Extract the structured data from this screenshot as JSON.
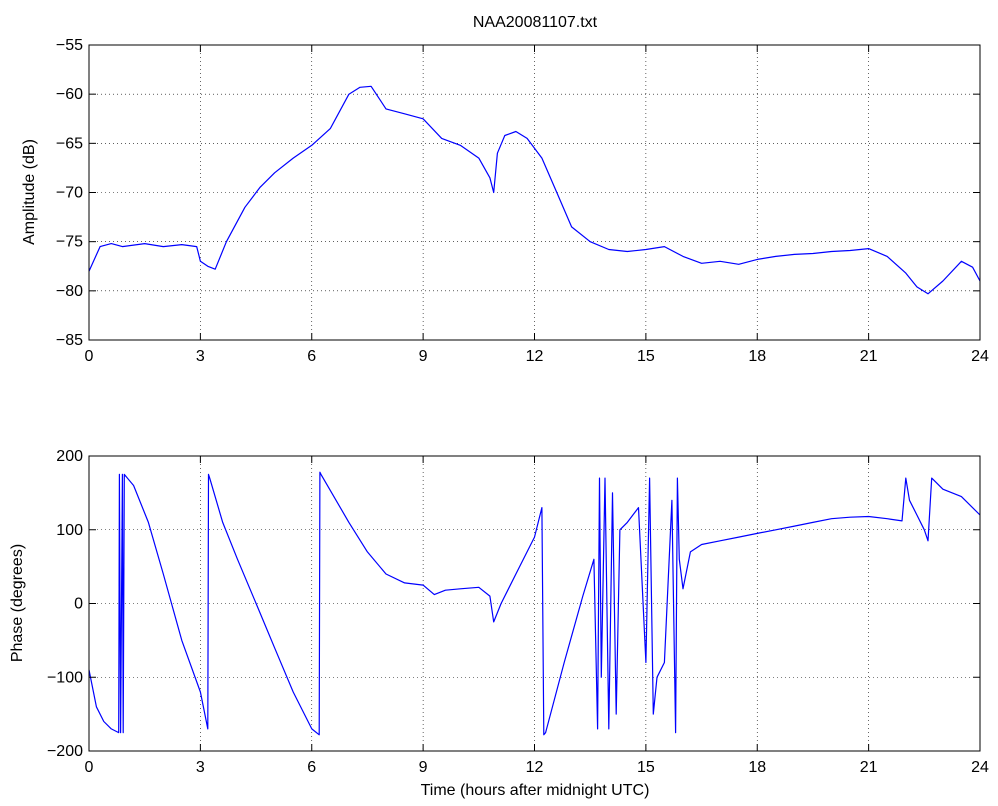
{
  "chart_data": [
    {
      "type": "line",
      "title": "NAA20081107.txt",
      "xlabel": "",
      "ylabel": "Amplitude (dB)",
      "xlim": [
        0,
        24
      ],
      "ylim": [
        -85,
        -55
      ],
      "xticks": [
        0,
        3,
        6,
        9,
        12,
        15,
        18,
        21,
        24
      ],
      "yticks": [
        -85,
        -80,
        -75,
        -70,
        -65,
        -60,
        -55
      ],
      "grid": true,
      "color": "#0000ff",
      "series": [
        {
          "x": [
            0,
            0.3,
            0.6,
            0.9,
            1.5,
            2.0,
            2.5,
            2.9,
            3.0,
            3.2,
            3.4,
            3.7,
            4.2,
            4.6,
            5.0,
            5.5,
            6.0,
            6.5,
            7.0,
            7.3,
            7.6,
            8.0,
            8.5,
            9.0,
            9.5,
            10.0,
            10.5,
            10.8,
            10.9,
            11.0,
            11.2,
            11.5,
            11.8,
            12.2,
            12.6,
            13.0,
            13.5,
            14.0,
            14.5,
            15.0,
            15.5,
            16.0,
            16.5,
            17.0,
            17.5,
            18.0,
            18.5,
            19.0,
            19.5,
            20.0,
            20.5,
            21.0,
            21.5,
            22.0,
            22.3,
            22.6,
            23.0,
            23.5,
            23.8,
            24.0
          ],
          "y": [
            -78,
            -75.5,
            -75.2,
            -75.5,
            -75.2,
            -75.5,
            -75.3,
            -75.5,
            -77,
            -77.5,
            -77.8,
            -75,
            -71.5,
            -69.5,
            -68,
            -66.5,
            -65.2,
            -63.5,
            -60,
            -59.3,
            -59.2,
            -61.5,
            -62,
            -62.5,
            -64.5,
            -65.2,
            -66.5,
            -68.5,
            -70,
            -66,
            -64.2,
            -63.8,
            -64.5,
            -66.5,
            -70,
            -73.5,
            -75,
            -75.8,
            -76,
            -75.8,
            -75.5,
            -76.5,
            -77.2,
            -77,
            -77.3,
            -76.8,
            -76.5,
            -76.3,
            -76.2,
            -76,
            -75.9,
            -75.7,
            -76.5,
            -78.2,
            -79.6,
            -80.3,
            -79,
            -77,
            -77.6,
            -79
          ]
        }
      ]
    },
    {
      "type": "line",
      "title": "",
      "xlabel": "Time (hours after midnight UTC)",
      "ylabel": "Phase (degrees)",
      "xlim": [
        0,
        24
      ],
      "ylim": [
        -200,
        200
      ],
      "xticks": [
        0,
        3,
        6,
        9,
        12,
        15,
        18,
        21,
        24
      ],
      "yticks": [
        -200,
        -100,
        0,
        100,
        200
      ],
      "grid": true,
      "color": "#0000ff",
      "series": [
        {
          "x": [
            0,
            0.2,
            0.4,
            0.6,
            0.8,
            0.82,
            0.85,
            0.9,
            0.92,
            0.95,
            1.2,
            1.6,
            2.0,
            2.5,
            3.0,
            3.2,
            3.22,
            3.25,
            3.6,
            4.0,
            4.5,
            5.0,
            5.5,
            6.0,
            6.2,
            6.22,
            6.25,
            7.0,
            7.5,
            8.0,
            8.5,
            9.0,
            9.3,
            9.6,
            10.0,
            10.5,
            10.8,
            10.9,
            11.1,
            11.5,
            12.0,
            12.2,
            12.25,
            12.3,
            12.8,
            13.3,
            13.6,
            13.7,
            13.75,
            13.8,
            13.9,
            14.0,
            14.1,
            14.2,
            14.3,
            14.5,
            14.8,
            15.0,
            15.1,
            15.2,
            15.3,
            15.5,
            15.7,
            15.8,
            15.85,
            15.9,
            16.0,
            16.2,
            16.5,
            17.0,
            17.5,
            18.0,
            18.5,
            19.0,
            19.5,
            20.0,
            20.5,
            21.0,
            21.5,
            21.9,
            22.0,
            22.1,
            22.3,
            22.5,
            22.6,
            22.7,
            22.8,
            23.0,
            23.5,
            24.0
          ],
          "y": [
            -90,
            -140,
            -160,
            -170,
            -175,
            175,
            -175,
            175,
            -175,
            175,
            160,
            110,
            40,
            -50,
            -120,
            -170,
            175,
            170,
            110,
            60,
            0,
            -60,
            -120,
            -170,
            -178,
            178,
            175,
            110,
            70,
            40,
            28,
            25,
            12,
            18,
            20,
            22,
            10,
            -25,
            0,
            40,
            90,
            130,
            -178,
            -175,
            -80,
            10,
            60,
            -170,
            170,
            -100,
            170,
            -170,
            150,
            -150,
            100,
            110,
            130,
            -80,
            170,
            -150,
            -100,
            -80,
            140,
            -175,
            170,
            60,
            20,
            70,
            80,
            85,
            90,
            95,
            100,
            105,
            110,
            115,
            117,
            118,
            115,
            112,
            170,
            140,
            120,
            100,
            85,
            170,
            165,
            155,
            145,
            120
          ]
        }
      ]
    }
  ]
}
